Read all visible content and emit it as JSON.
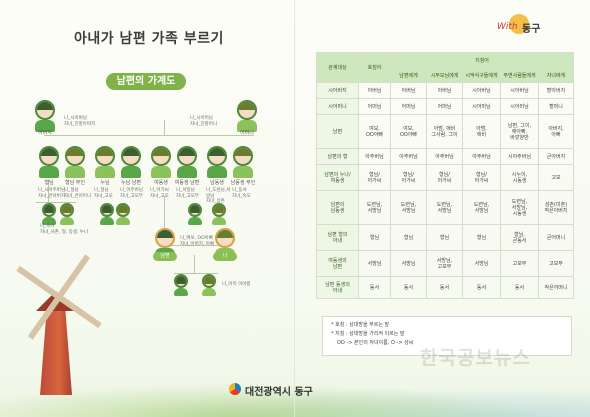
{
  "title": "아내가 남편 가족 부르기",
  "brand": {
    "with": "With",
    "name": "동구"
  },
  "tree": {
    "title": "남편의 가계도",
    "grandparents": [
      {
        "role": "아버지",
        "note": "나_시아버님\n자녀_친할아버지"
      },
      {
        "role": "어머니",
        "note": "나_시어머님\n자녀_친할머니"
      }
    ],
    "siblings": [
      {
        "role": "형님",
        "note": "나_시아주버님\n자녀_큰아버지"
      },
      {
        "role": "형님 부인",
        "note": "나_형님\n자녀_큰어머니"
      },
      {
        "role": "누님",
        "note": "나_형님\n자녀_고모"
      },
      {
        "role": "누님 남편",
        "note": "나_아주버님\n자녀_고모부"
      },
      {
        "role": "여동생",
        "note": "나_아가씨\n자녀_고모"
      },
      {
        "role": "여동생 남편",
        "note": "나_서방님\n자녀_고모부"
      },
      {
        "role": "남동생",
        "note": "나_도련님,서방님\n자녀_삼촌"
      },
      {
        "role": "남동생 부인",
        "note": "나_동서\n자녀_숙모"
      }
    ],
    "nephews_note": "나_조카\n자녀_사촌, 형, 동생, 누나",
    "husband": "남편",
    "husband_note": "나_여보, OO아빠\n자녀_아버지, 아빠",
    "me": "나",
    "children_note": "나_아이 이야름"
  },
  "table": {
    "col_headers": [
      "관계대상",
      "호칭어",
      "지칭어"
    ],
    "sub_headers": [
      "남편에게",
      "시부모님에게",
      "시댁식구들에게",
      "주변사람들에게",
      "자녀에게"
    ],
    "rows": [
      {
        "target": "시아버지",
        "cells": [
          "아버님",
          "아버님",
          "아버님",
          "시아버님",
          "시아버님",
          "할아버지"
        ]
      },
      {
        "target": "시어머니",
        "cells": [
          "어머님",
          "어머님",
          "어머님",
          "시어머님",
          "시어머님",
          "할머니"
        ]
      },
      {
        "target": "남편",
        "cells": [
          "여보,\nOO아빠",
          "여보,\nOO아빠",
          "아범, 애비\n그사람, 그이",
          "아범,\n애비",
          "남편, 그이,\n애아빠,\n바깥양반",
          "아버지,\n아빠"
        ]
      },
      {
        "target": "남편의 형",
        "cells": [
          "아주버님",
          "아주버님",
          "아주버님",
          "아주버님",
          "시아주버님",
          "큰아버지"
        ]
      },
      {
        "target": "남편의 누나/\n여동생",
        "cells": [
          "형님/\n아가씨",
          "형님/\n아가씨",
          "형님/\n아가씨",
          "형님/\n아가씨",
          "시누이,\n시동생",
          "고모"
        ]
      },
      {
        "target": "남편의\n남동생",
        "cells": [
          "도련님,\n서방님",
          "도련님,\n서방님",
          "도련님,\n서방님",
          "도련님,\n서방님",
          "도련님,\n서방님,\n시동생",
          "삼촌(미혼)\n작은아버지"
        ]
      },
      {
        "target": "남편 형의\n아내",
        "cells": [
          "형님",
          "형님",
          "형님",
          "형님",
          "형님,\n큰동서",
          "큰어머니"
        ]
      },
      {
        "target": "여동생의\n남편",
        "cells": [
          "서방님",
          "서방님",
          "서방님,\n고모부",
          "서방님",
          "고모부",
          "고모부"
        ]
      },
      {
        "target": "남편 동생의\n아내",
        "cells": [
          "동서",
          "동서",
          "동서",
          "동서",
          "동서",
          "작은어머니"
        ]
      }
    ]
  },
  "notes": [
    "* 호칭 : 상대방을 부르는 말",
    "* 지칭 : 상대방을 가리켜 이르는 말",
    "OO -> 본인의 자녀이름, O -> 성씨"
  ],
  "footer": {
    "brand": "대전광역시 동구"
  },
  "watermark": "한국공보뉴스"
}
